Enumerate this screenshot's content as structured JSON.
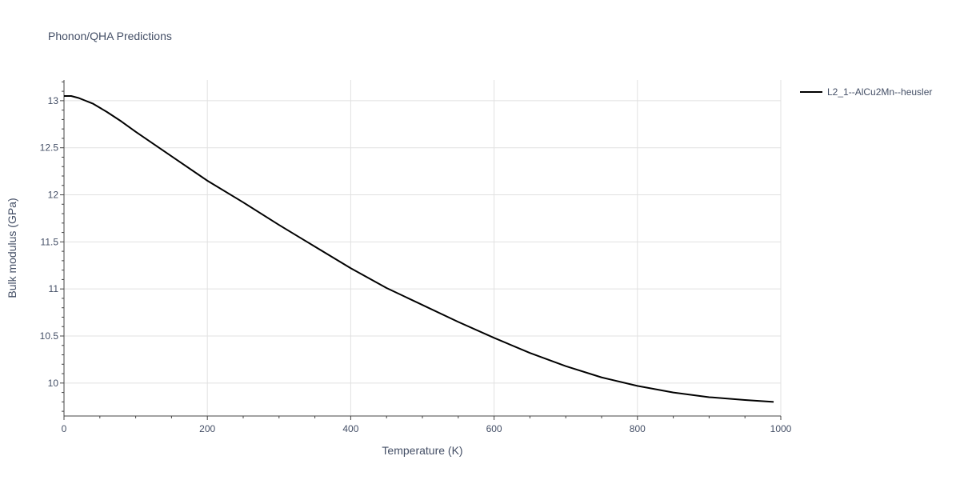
{
  "chart_data": {
    "type": "line",
    "title": "Phonon/QHA Predictions",
    "xlabel": "Temperature (K)",
    "ylabel": "Bulk modulus (GPa)",
    "xlim": [
      0,
      1000
    ],
    "ylim": [
      9.65,
      13.22
    ],
    "xticks": [
      0,
      200,
      400,
      600,
      800,
      1000
    ],
    "yticks": [
      10,
      10.5,
      11,
      11.5,
      12,
      12.5,
      13
    ],
    "grid": true,
    "legend": "top-right",
    "series": [
      {
        "name": "L2_1--AlCu2Mn--heusler",
        "color": "#000000",
        "x": [
          0,
          10,
          20,
          30,
          40,
          60,
          80,
          100,
          150,
          200,
          250,
          300,
          350,
          400,
          450,
          500,
          550,
          600,
          650,
          700,
          750,
          800,
          850,
          900,
          950,
          990
        ],
        "y": [
          13.05,
          13.05,
          13.03,
          13.0,
          12.97,
          12.88,
          12.78,
          12.67,
          12.41,
          12.15,
          11.92,
          11.68,
          11.45,
          11.22,
          11.01,
          10.83,
          10.65,
          10.48,
          10.32,
          10.18,
          10.06,
          9.97,
          9.9,
          9.85,
          9.82,
          9.8
        ]
      }
    ]
  }
}
